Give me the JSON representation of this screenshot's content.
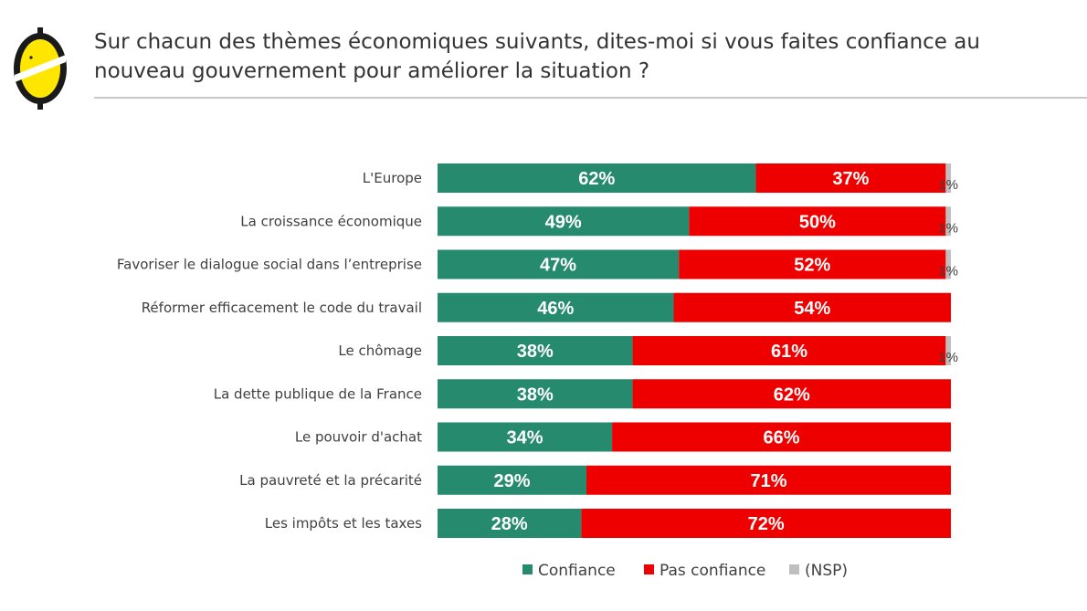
{
  "title": "Sur chacun des thèmes économiques suivants, dites-moi si vous faites confiance au nouveau gouvernement pour améliorer la situation ?",
  "colors": {
    "confiance": "#268A6E",
    "pas_confiance": "#EE0000",
    "nsp": "#BFBFBF",
    "logo_yellow": "#FFE600",
    "logo_black": "#1A1A1A"
  },
  "chart_data": {
    "type": "bar",
    "orientation": "horizontal",
    "stacked": true,
    "title": "Sur chacun des thèmes économiques suivants, dites-moi si vous faites confiance au nouveau gouvernement pour améliorer la situation ?",
    "xlabel": "",
    "ylabel": "",
    "xlim": [
      0,
      100
    ],
    "unit": "%",
    "categories": [
      "L'Europe",
      "La croissance économique",
      "Favoriser le dialogue social dans l’entreprise",
      "Réformer efficacement le code du travail",
      "Le chômage",
      "La dette publique de la France",
      "Le pouvoir d'achat",
      "La pauvreté et la précarité",
      "Les impôts et les taxes"
    ],
    "series": [
      {
        "name": "Confiance",
        "key": "confiance",
        "values": [
          62,
          49,
          47,
          46,
          38,
          38,
          34,
          29,
          28
        ]
      },
      {
        "name": "Pas confiance",
        "key": "pas_confiance",
        "values": [
          37,
          50,
          52,
          54,
          61,
          62,
          66,
          71,
          72
        ]
      },
      {
        "name": "(NSP)",
        "key": "nsp",
        "values": [
          1,
          1,
          1,
          0,
          1,
          0,
          0,
          0,
          0
        ]
      }
    ],
    "legend": {
      "position": "bottom",
      "items": [
        "Confiance",
        "Pas confiance",
        "(NSP)"
      ]
    }
  }
}
